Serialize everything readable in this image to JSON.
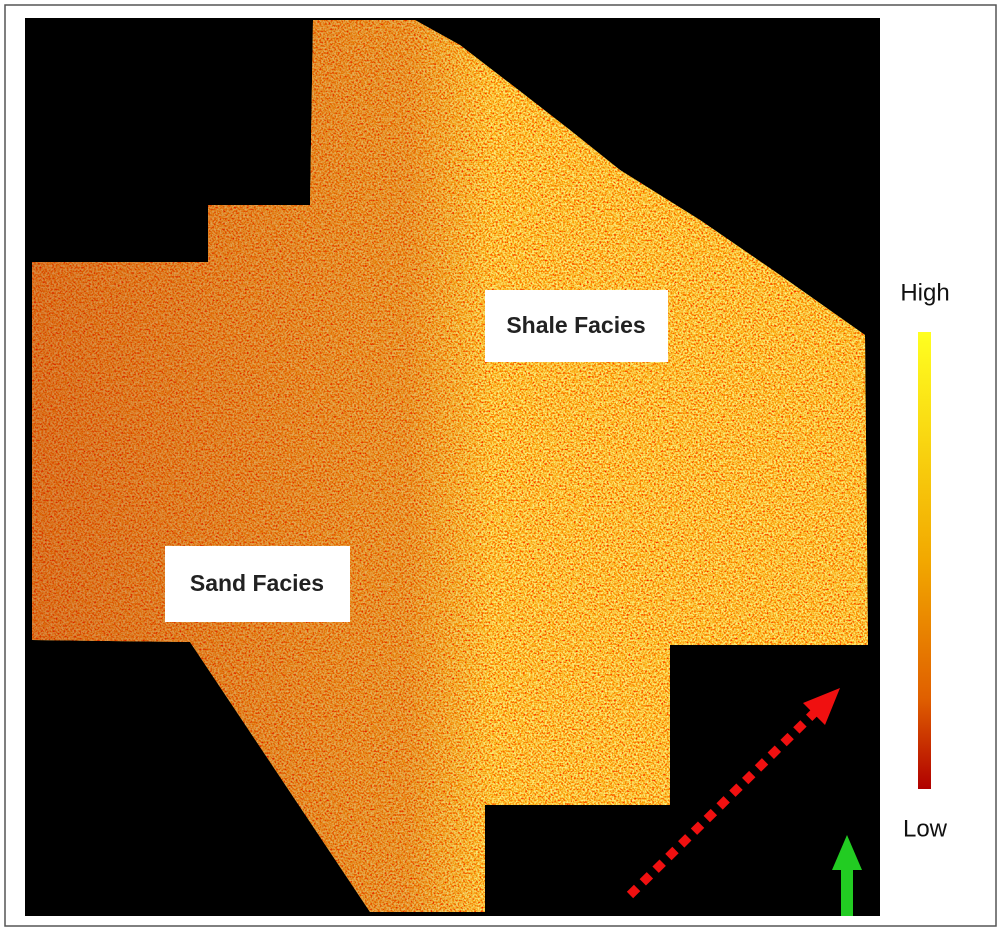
{
  "labels": {
    "shale": "Shale Facies",
    "sand": "Sand Facies"
  },
  "colorbar": {
    "high": "High",
    "low": "Low"
  }
}
